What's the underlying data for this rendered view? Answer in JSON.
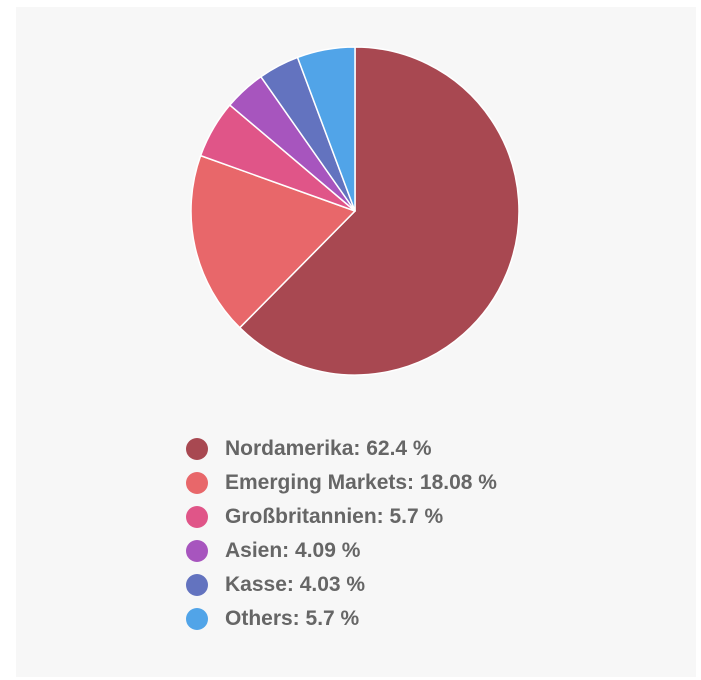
{
  "chart_data": {
    "type": "pie",
    "title": "",
    "legend_position": "bottom",
    "slices": [
      {
        "label": "Nordamerika: 62.4 %",
        "name": "Nordamerika",
        "value": 62.4,
        "color": "#a84851"
      },
      {
        "label": "Emerging Markets: 18.08 %",
        "name": "Emerging Markets",
        "value": 18.08,
        "color": "#e8676a"
      },
      {
        "label": "Großbritannien: 5.7 %",
        "name": "Großbritannien",
        "value": 5.7,
        "color": "#e05588"
      },
      {
        "label": "Asien: 4.09 %",
        "name": "Asien",
        "value": 4.09,
        "color": "#a755be"
      },
      {
        "label": "Kasse: 4.03 %",
        "name": "Kasse",
        "value": 4.03,
        "color": "#6373bf"
      },
      {
        "label": "Others: 5.7 %",
        "name": "Others",
        "value": 5.7,
        "color": "#51a4e8"
      }
    ]
  }
}
